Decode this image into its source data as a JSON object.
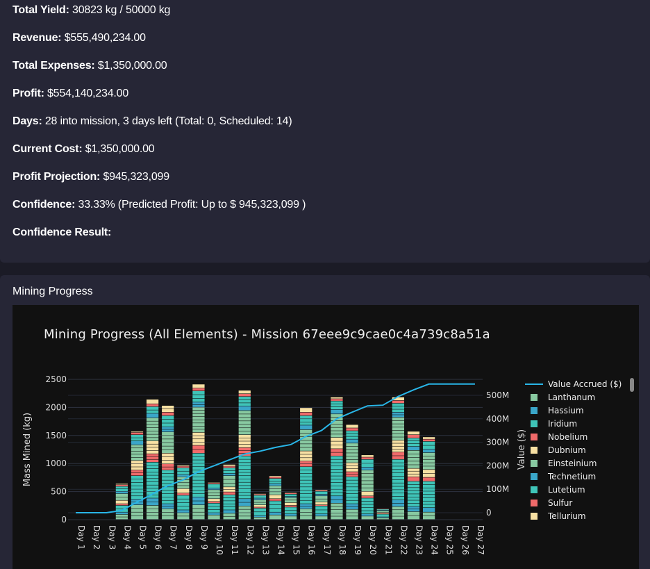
{
  "stats": {
    "total_yield_label": "Total Yield:",
    "total_yield_value": "30823 kg / 50000 kg",
    "revenue_label": "Revenue:",
    "revenue_value": "$555,490,234.00",
    "expenses_label": "Total Expenses:",
    "expenses_value": "$1,350,000.00",
    "profit_label": "Profit:",
    "profit_value": "$554,140,234.00",
    "days_label": "Days:",
    "days_value": "28 into mission, 3 days left (Total: 0, Scheduled: 14)",
    "current_cost_label": "Current Cost:",
    "current_cost_value": "$1,350,000.00",
    "projection_label": "Profit Projection:",
    "projection_value": "$945,323,099",
    "confidence_label": "Confidence:",
    "confidence_value": "33.33% (Predicted Profit: Up to $ 945,323,099 )",
    "confidence_result_label": "Confidence Result:"
  },
  "progress": {
    "section_title": "Mining Progress"
  },
  "chart_data": {
    "type": "bar",
    "title": "Mining Progress (All Elements) - Mission 67eee9c9cae0c4a739c8a51a",
    "xlabel": "",
    "ylabel": "Mass Mined (kg)",
    "y2label": "Value ($)",
    "ylim": [
      0,
      2500
    ],
    "y2lim": [
      0,
      550000000
    ],
    "yticks": [
      "0",
      "500",
      "1000",
      "1500",
      "2000",
      "2500"
    ],
    "y2ticks": [
      "0",
      "100M",
      "200M",
      "300M",
      "400M",
      "500M"
    ],
    "categories": [
      "Day 1",
      "Day 2",
      "Day 3",
      "Day 4",
      "Day 5",
      "Day 6",
      "Day 7",
      "Day 8",
      "Day 9",
      "Day 10",
      "Day 11",
      "Day 12",
      "Day 13",
      "Day 14",
      "Day 15",
      "Day 16",
      "Day 17",
      "Day 18",
      "Day 19",
      "Day 20",
      "Day 21",
      "Day 22",
      "Day 23",
      "Day 24",
      "Day 25",
      "Day 26",
      "Day 27"
    ],
    "stacked": true,
    "legend_position": "right",
    "colors": {
      "Lanthanum": "#88c9a1",
      "Hassium": "#3aa6c9",
      "Iridium": "#3fc4b8",
      "Nobelium": "#f06a6a",
      "Dubnium": "#f7e0a3",
      "Einsteinium": "#88c9a1",
      "Technetium": "#3aa6c9",
      "Lutetium": "#3fc4b8",
      "Sulfur": "#f06a6a",
      "Tellurium": "#f7e0a3",
      "line": "#29b6e8"
    },
    "series": [
      {
        "name": "Lanthanum",
        "values": [
          0,
          0,
          0,
          90,
          260,
          250,
          190,
          120,
          260,
          80,
          110,
          240,
          40,
          80,
          60,
          190,
          60,
          290,
          180,
          60,
          30,
          230,
          140,
          130,
          0,
          0,
          0
        ]
      },
      {
        "name": "Hassium",
        "values": [
          0,
          0,
          0,
          40,
          100,
          130,
          90,
          50,
          140,
          40,
          60,
          130,
          30,
          50,
          40,
          90,
          40,
          130,
          100,
          40,
          15,
          120,
          90,
          80,
          0,
          0,
          0
        ]
      },
      {
        "name": "Iridium",
        "values": [
          0,
          0,
          0,
          120,
          420,
          640,
          600,
          260,
          780,
          170,
          270,
          760,
          130,
          200,
          120,
          660,
          140,
          710,
          480,
          280,
          50,
          720,
          450,
          470,
          0,
          0,
          0
        ]
      },
      {
        "name": "Nobelium",
        "values": [
          0,
          0,
          0,
          30,
          100,
          150,
          110,
          40,
          140,
          30,
          50,
          150,
          20,
          40,
          30,
          100,
          20,
          130,
          90,
          40,
          10,
          130,
          80,
          70,
          0,
          0,
          0
        ]
      },
      {
        "name": "Dubnium",
        "values": [
          0,
          0,
          0,
          60,
          170,
          230,
          190,
          80,
          230,
          50,
          90,
          230,
          40,
          70,
          50,
          180,
          50,
          200,
          160,
          80,
          20,
          210,
          150,
          140,
          0,
          0,
          0
        ]
      },
      {
        "name": "Einsteinium",
        "values": [
          0,
          0,
          0,
          120,
          280,
          410,
          380,
          210,
          450,
          160,
          200,
          430,
          90,
          160,
          90,
          380,
          110,
          420,
          350,
          380,
          30,
          410,
          320,
          300,
          0,
          0,
          0
        ]
      },
      {
        "name": "Technetium",
        "values": [
          0,
          0,
          0,
          40,
          70,
          80,
          90,
          40,
          90,
          30,
          40,
          80,
          30,
          40,
          20,
          80,
          30,
          80,
          70,
          50,
          10,
          90,
          70,
          60,
          0,
          0,
          0
        ]
      },
      {
        "name": "Lutetium",
        "values": [
          0,
          0,
          0,
          90,
          110,
          120,
          200,
          120,
          200,
          70,
          100,
          170,
          50,
          90,
          40,
          170,
          50,
          150,
          150,
          140,
          20,
          160,
          150,
          140,
          0,
          0,
          0
        ]
      },
      {
        "name": "Sulfur",
        "values": [
          0,
          0,
          0,
          30,
          40,
          50,
          60,
          30,
          50,
          20,
          30,
          50,
          20,
          30,
          20,
          60,
          20,
          40,
          50,
          40,
          5,
          50,
          60,
          40,
          0,
          0,
          0
        ]
      },
      {
        "name": "Tellurium",
        "values": [
          0,
          0,
          0,
          20,
          20,
          80,
          120,
          20,
          70,
          10,
          30,
          60,
          10,
          20,
          10,
          80,
          10,
          30,
          60,
          40,
          0,
          60,
          60,
          40,
          0,
          0,
          0
        ]
      }
    ],
    "line_series": {
      "name": "Value Accrued ($)",
      "values": [
        0,
        0,
        0,
        10000000,
        45000000,
        80000000,
        115000000,
        140000000,
        175000000,
        200000000,
        225000000,
        250000000,
        262000000,
        278000000,
        290000000,
        325000000,
        350000000,
        400000000,
        428000000,
        455000000,
        458000000,
        495000000,
        523000000,
        548000000,
        548000000,
        548000000,
        548000000
      ]
    }
  }
}
